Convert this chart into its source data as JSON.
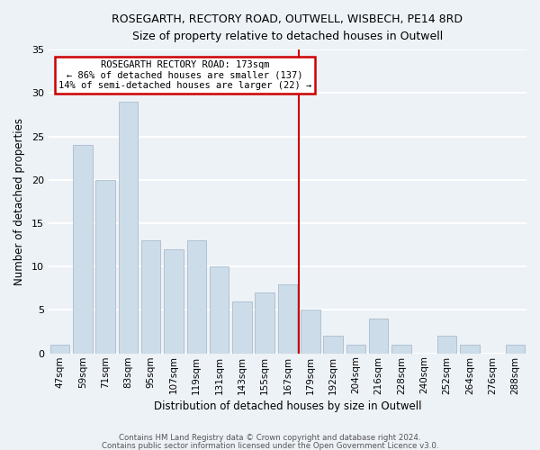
{
  "title": "ROSEGARTH, RECTORY ROAD, OUTWELL, WISBECH, PE14 8RD",
  "subtitle": "Size of property relative to detached houses in Outwell",
  "xlabel": "Distribution of detached houses by size in Outwell",
  "ylabel": "Number of detached properties",
  "bar_color": "#ccdce8",
  "bar_edge_color": "#aabccc",
  "categories": [
    "47sqm",
    "59sqm",
    "71sqm",
    "83sqm",
    "95sqm",
    "107sqm",
    "119sqm",
    "131sqm",
    "143sqm",
    "155sqm",
    "167sqm",
    "179sqm",
    "192sqm",
    "204sqm",
    "216sqm",
    "228sqm",
    "240sqm",
    "252sqm",
    "264sqm",
    "276sqm",
    "288sqm"
  ],
  "values": [
    1,
    24,
    20,
    29,
    13,
    12,
    13,
    10,
    6,
    7,
    8,
    5,
    2,
    1,
    4,
    1,
    0,
    2,
    1,
    0,
    1
  ],
  "ylim": [
    0,
    35
  ],
  "yticks": [
    0,
    5,
    10,
    15,
    20,
    25,
    30,
    35
  ],
  "annotation_text_line1": "ROSEGARTH RECTORY ROAD: 173sqm",
  "annotation_text_line2": "← 86% of detached houses are smaller (137)",
  "annotation_text_line3": "14% of semi-detached houses are larger (22) →",
  "footnote1": "Contains HM Land Registry data © Crown copyright and database right 2024.",
  "footnote2": "Contains public sector information licensed under the Open Government Licence v3.0.",
  "bg_color": "#edf2f7",
  "grid_color": "#ffffff",
  "annotation_box_color": "#ffffff",
  "annotation_box_edge": "#cc0000",
  "vline_color": "#cc0000",
  "vline_x_index": 10
}
